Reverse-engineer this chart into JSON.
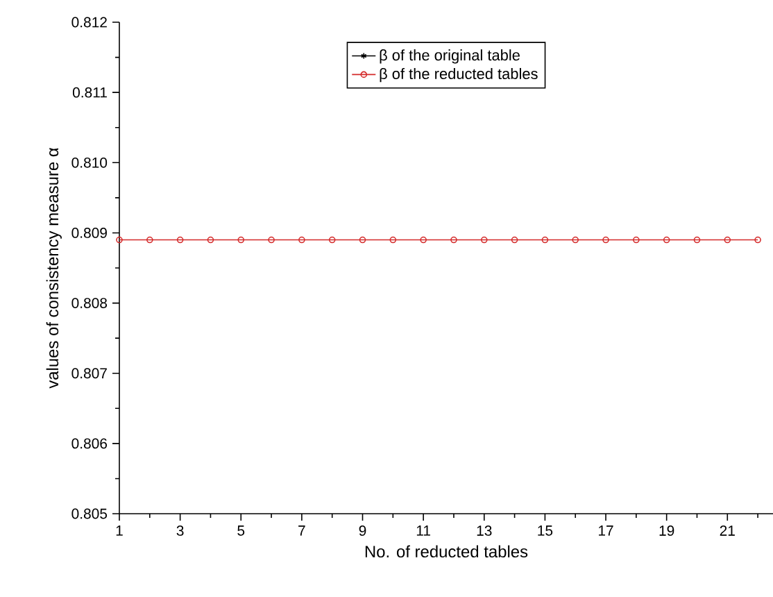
{
  "chart_data": {
    "type": "line",
    "xlabel": "No. of reducted tables",
    "ylabel": "values of consistency measure α",
    "x": [
      1,
      2,
      3,
      4,
      5,
      6,
      7,
      8,
      9,
      10,
      11,
      12,
      13,
      14,
      15,
      16,
      17,
      18,
      19,
      20,
      21,
      22
    ],
    "series": [
      {
        "name": "β of the original table",
        "color": "#000000",
        "marker": "star",
        "values": [
          null,
          null,
          null,
          null,
          null,
          null,
          null,
          null,
          null,
          null,
          null,
          null,
          null,
          null,
          null,
          null,
          null,
          null,
          null,
          null,
          null,
          null
        ]
      },
      {
        "name": "β of the reducted tables",
        "color": "#d42a2a",
        "marker": "circle",
        "values": [
          0.8089,
          0.8089,
          0.8089,
          0.8089,
          0.8089,
          0.8089,
          0.8089,
          0.8089,
          0.8089,
          0.8089,
          0.8089,
          0.8089,
          0.8089,
          0.8089,
          0.8089,
          0.8089,
          0.8089,
          0.8089,
          0.8089,
          0.8089,
          0.8089,
          0.8089
        ]
      }
    ],
    "xlim": [
      1,
      22.5
    ],
    "xticks": [
      1,
      {
        "value": 2,
        "label": null
      },
      3,
      {
        "value": 4,
        "label": null
      },
      5,
      {
        "value": 6,
        "label": null
      },
      7,
      {
        "value": 8,
        "label": null
      },
      9,
      {
        "value": 10,
        "label": null
      },
      11,
      {
        "value": 12,
        "label": null
      },
      13,
      {
        "value": 14,
        "label": null
      },
      15,
      {
        "value": 16,
        "label": null
      },
      17,
      {
        "value": 18,
        "label": null
      },
      19,
      {
        "value": 20,
        "label": null
      },
      21,
      {
        "value": 22,
        "label": null
      }
    ],
    "ylim": [
      0.805,
      0.812
    ],
    "yticks": [
      {
        "value": 0.805,
        "label": "0.805"
      },
      {
        "value": 0.8055,
        "label": null
      },
      {
        "value": 0.806,
        "label": "0.806"
      },
      {
        "value": 0.8065,
        "label": null
      },
      {
        "value": 0.807,
        "label": "0.807"
      },
      {
        "value": 0.8075,
        "label": null
      },
      {
        "value": 0.808,
        "label": "0.808"
      },
      {
        "value": 0.8085,
        "label": null
      },
      {
        "value": 0.809,
        "label": "0.809"
      },
      {
        "value": 0.8095,
        "label": null
      },
      {
        "value": 0.81,
        "label": "0.810"
      },
      {
        "value": 0.8105,
        "label": null
      },
      {
        "value": 0.811,
        "label": "0.811"
      },
      {
        "value": 0.8115,
        "label": null
      },
      {
        "value": 0.812,
        "label": "0.812"
      }
    ],
    "legend": "top",
    "grid": false
  }
}
